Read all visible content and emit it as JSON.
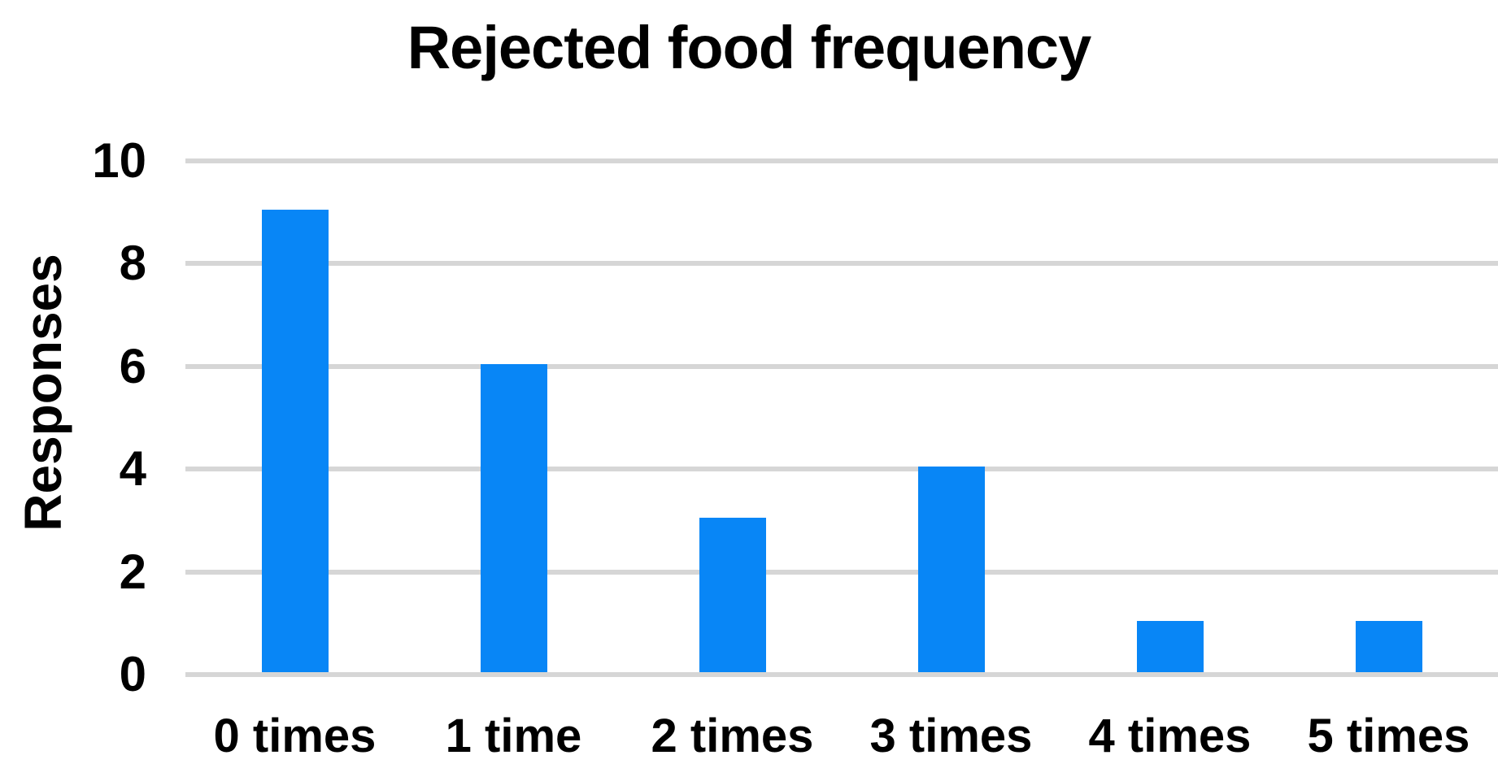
{
  "chart_data": {
    "type": "bar",
    "title": "Rejected food frequency",
    "categories": [
      "0 times",
      "1 time",
      "2 times",
      "3 times",
      "4 times",
      "5 times"
    ],
    "values": [
      9,
      6,
      3,
      4,
      1,
      1
    ],
    "xlabel": "",
    "ylabel": "Responses",
    "ylim": [
      0,
      10
    ],
    "yticks": [
      0,
      2,
      4,
      6,
      8,
      10
    ],
    "grid": true,
    "legend_position": "none",
    "colors": {
      "bar": "#0886f6",
      "gridline": "#d6d6d6",
      "text": "#000000",
      "background": "#ffffff"
    }
  }
}
